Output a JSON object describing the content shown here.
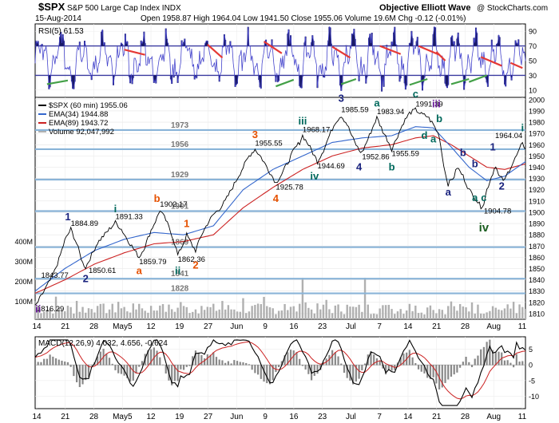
{
  "header": {
    "symbol": "$SPX",
    "description": "S&P 500 Large Cap Index INDX",
    "date": "15-Aug-2014",
    "brand": "Objective Elliott Wave",
    "copyright": "@ StockCharts.com",
    "quote": "Open 1958.87  High 1964.04  Low 1941.50  Close 1955.06  Volume 19.6M  Chg -0.12 (-0.01%)"
  },
  "colors": {
    "rsi_fill": "#1a1a66",
    "rsi_line": "#4444cc",
    "ema34": "#3366cc",
    "ema89": "#cc2222",
    "price": "#000000",
    "volume": "#b0b0b0",
    "level_line": "#8ab4d8",
    "wave_blue": "#1a237e",
    "wave_teal": "#00695c",
    "wave_orange": "#e65100",
    "wave_green": "#1b5e20",
    "wave_purple": "#6a1b9a",
    "divergence_red": "#e53935",
    "divergence_green": "#43a047",
    "macd_line": "#000000",
    "macd_signal": "#cc2222",
    "histogram": "#888888"
  },
  "chart_data": [
    {
      "type": "line",
      "panel": "rsi",
      "title": "RSI(5) 61.53",
      "ylim": [
        0,
        100
      ],
      "y_ticks": [
        10,
        30,
        50,
        70,
        90
      ],
      "levels": [
        30,
        70
      ]
    },
    {
      "type": "line",
      "panel": "price",
      "xlabel": "",
      "ylabel": "",
      "ylim": [
        1805,
        2002
      ],
      "y_ticks": [
        1810,
        1820,
        1830,
        1840,
        1850,
        1860,
        1870,
        1880,
        1890,
        1900,
        1910,
        1920,
        1930,
        1940,
        1950,
        1960,
        1970,
        1980,
        1990,
        2000
      ],
      "volume_ticks": [
        "100M",
        "200M",
        "300M",
        "400M"
      ],
      "legend": [
        {
          "name": "$SPX (60 min) 1955.06"
        },
        {
          "name": "EMA(34) 1944.88"
        },
        {
          "name": "EMA(89) 1943.72"
        },
        {
          "name": "Volume 92,047,992"
        }
      ],
      "x_ticks": [
        "14",
        "21",
        "28",
        "May5",
        "12",
        "19",
        "27",
        "Jun",
        "9",
        "16",
        "23",
        "Jul",
        "7",
        "14",
        "21",
        "28",
        "Aug",
        "11"
      ],
      "price_path": [
        [
          0,
          1816
        ],
        [
          3,
          1830
        ],
        [
          6,
          1844
        ],
        [
          8,
          1858
        ],
        [
          10,
          1875
        ],
        [
          12,
          1885
        ],
        [
          14,
          1872
        ],
        [
          16,
          1855
        ],
        [
          17,
          1851
        ],
        [
          19,
          1862
        ],
        [
          21,
          1873
        ],
        [
          24,
          1882
        ],
        [
          27,
          1891
        ],
        [
          29,
          1885
        ],
        [
          31,
          1876
        ],
        [
          33,
          1868
        ],
        [
          35,
          1860
        ],
        [
          37,
          1870
        ],
        [
          39,
          1884
        ],
        [
          41,
          1895
        ],
        [
          42,
          1902
        ],
        [
          44,
          1893
        ],
        [
          46,
          1880
        ],
        [
          47,
          1872
        ],
        [
          48,
          1862
        ],
        [
          50,
          1873
        ],
        [
          51,
          1880
        ],
        [
          53,
          1870
        ],
        [
          54,
          1866
        ],
        [
          56,
          1880
        ],
        [
          58,
          1890
        ],
        [
          60,
          1898
        ],
        [
          62,
          1903
        ],
        [
          64,
          1910
        ],
        [
          66,
          1920
        ],
        [
          68,
          1930
        ],
        [
          70,
          1940
        ],
        [
          72,
          1950
        ],
        [
          74,
          1956
        ],
        [
          76,
          1949
        ],
        [
          78,
          1940
        ],
        [
          80,
          1931
        ],
        [
          81,
          1926
        ],
        [
          83,
          1934
        ],
        [
          85,
          1944
        ],
        [
          87,
          1955
        ],
        [
          89,
          1962
        ],
        [
          90,
          1968
        ],
        [
          92,
          1960
        ],
        [
          94,
          1950
        ],
        [
          95,
          1945
        ],
        [
          97,
          1955
        ],
        [
          99,
          1968
        ],
        [
          101,
          1980
        ],
        [
          103,
          1986
        ],
        [
          105,
          1978
        ],
        [
          107,
          1965
        ],
        [
          109,
          1955
        ],
        [
          110,
          1953
        ],
        [
          112,
          1965
        ],
        [
          114,
          1978
        ],
        [
          115,
          1984
        ],
        [
          117,
          1972
        ],
        [
          119,
          1962
        ],
        [
          120,
          1956
        ],
        [
          122,
          1968
        ],
        [
          124,
          1980
        ],
        [
          126,
          1988
        ],
        [
          128,
          1991
        ],
        [
          130,
          1987
        ],
        [
          132,
          1985
        ],
        [
          134,
          1978
        ],
        [
          136,
          1968
        ],
        [
          137,
          1950
        ],
        [
          138,
          1935
        ],
        [
          139,
          1925
        ],
        [
          141,
          1932
        ],
        [
          142,
          1940
        ],
        [
          144,
          1932
        ],
        [
          146,
          1920
        ],
        [
          148,
          1913
        ],
        [
          150,
          1905
        ],
        [
          151,
          1908
        ],
        [
          152,
          1920
        ],
        [
          154,
          1935
        ],
        [
          155,
          1942
        ],
        [
          156,
          1932
        ],
        [
          158,
          1928
        ],
        [
          159,
          1935
        ],
        [
          161,
          1945
        ],
        [
          163,
          1955
        ],
        [
          164,
          1963
        ],
        [
          165,
          1955
        ]
      ],
      "ema34_path": [
        [
          0,
          1830
        ],
        [
          10,
          1850
        ],
        [
          20,
          1866
        ],
        [
          30,
          1876
        ],
        [
          40,
          1882
        ],
        [
          50,
          1880
        ],
        [
          60,
          1888
        ],
        [
          70,
          1920
        ],
        [
          80,
          1938
        ],
        [
          90,
          1950
        ],
        [
          100,
          1962
        ],
        [
          110,
          1966
        ],
        [
          120,
          1968
        ],
        [
          128,
          1976
        ],
        [
          134,
          1975
        ],
        [
          140,
          1958
        ],
        [
          146,
          1940
        ],
        [
          152,
          1928
        ],
        [
          158,
          1932
        ],
        [
          165,
          1945
        ]
      ],
      "ema89_path": [
        [
          0,
          1828
        ],
        [
          10,
          1840
        ],
        [
          20,
          1854
        ],
        [
          30,
          1864
        ],
        [
          40,
          1872
        ],
        [
          50,
          1874
        ],
        [
          60,
          1880
        ],
        [
          70,
          1904
        ],
        [
          80,
          1922
        ],
        [
          90,
          1938
        ],
        [
          100,
          1950
        ],
        [
          110,
          1957
        ],
        [
          120,
          1960
        ],
        [
          128,
          1966
        ],
        [
          134,
          1968
        ],
        [
          140,
          1960
        ],
        [
          146,
          1950
        ],
        [
          152,
          1940
        ],
        [
          158,
          1938
        ],
        [
          165,
          1943
        ]
      ],
      "levels": [
        {
          "value": 1973,
          "label": "1973"
        },
        {
          "value": 1956,
          "label": "1956"
        },
        {
          "value": 1929,
          "label": "1929"
        },
        {
          "value": 1901,
          "label": "1901"
        },
        {
          "value": 1869,
          "label": "1869"
        },
        {
          "value": 1841,
          "label": "1841"
        },
        {
          "value": 1828,
          "label": "1828"
        }
      ],
      "value_labels": [
        {
          "text": "1816.29",
          "x": 0,
          "y": 1812
        },
        {
          "text": "1843.77",
          "x": 2,
          "y": 1842
        },
        {
          "text": "1884.89",
          "x": 12,
          "y": 1888
        },
        {
          "text": "1850.61",
          "x": 18,
          "y": 1846
        },
        {
          "text": "1891.33",
          "x": 27,
          "y": 1894
        },
        {
          "text": "1859.79",
          "x": 35,
          "y": 1854
        },
        {
          "text": "1902.17",
          "x": 42,
          "y": 1905
        },
        {
          "text": "1862.36",
          "x": 48,
          "y": 1856
        },
        {
          "text": "1955.55",
          "x": 74,
          "y": 1959
        },
        {
          "text": "1925.78",
          "x": 81,
          "y": 1920
        },
        {
          "text": "1968.17",
          "x": 90,
          "y": 1971
        },
        {
          "text": "1944.69",
          "x": 95,
          "y": 1939
        },
        {
          "text": "1985.59",
          "x": 103,
          "y": 1989
        },
        {
          "text": "1952.86",
          "x": 110,
          "y": 1947
        },
        {
          "text": "1983.94",
          "x": 115,
          "y": 1987
        },
        {
          "text": "1955.59",
          "x": 120,
          "y": 1950
        },
        {
          "text": "1991.39",
          "x": 128,
          "y": 1994
        },
        {
          "text": "1904.78",
          "x": 151,
          "y": 1899
        },
        {
          "text": "1964.04",
          "x": 164,
          "y": 1966
        }
      ],
      "wave_labels": [
        {
          "text": "ii",
          "x": 1,
          "y": 1811,
          "color": "purple"
        },
        {
          "text": "1",
          "x": 11,
          "y": 1893,
          "color": "blue"
        },
        {
          "text": "2",
          "x": 17,
          "y": 1838,
          "color": "blue"
        },
        {
          "text": "i",
          "x": 27,
          "y": 1900,
          "color": "teal"
        },
        {
          "text": "a",
          "x": 35,
          "y": 1845,
          "color": "orange"
        },
        {
          "text": "b",
          "x": 41,
          "y": 1909,
          "color": "orange"
        },
        {
          "text": "1",
          "x": 51,
          "y": 1887,
          "color": "orange"
        },
        {
          "text": "ii",
          "x": 48,
          "y": 1845,
          "color": "teal"
        },
        {
          "text": "2",
          "x": 54,
          "y": 1850,
          "color": "orange"
        },
        {
          "text": "3",
          "x": 74,
          "y": 1966,
          "color": "orange"
        },
        {
          "text": "4",
          "x": 81,
          "y": 1909,
          "color": "orange"
        },
        {
          "text": "iii",
          "x": 90,
          "y": 1978,
          "color": "teal"
        },
        {
          "text": "iv",
          "x": 94,
          "y": 1929,
          "color": "teal"
        },
        {
          "text": "3",
          "x": 103,
          "y": 1998,
          "color": "blue"
        },
        {
          "text": "4",
          "x": 109,
          "y": 1937,
          "color": "blue"
        },
        {
          "text": "a",
          "x": 115,
          "y": 1994,
          "color": "teal"
        },
        {
          "text": "b",
          "x": 120,
          "y": 1937,
          "color": "teal"
        },
        {
          "text": "c",
          "x": 128,
          "y": 2002,
          "color": "teal"
        },
        {
          "text": "iii",
          "x": 135,
          "y": 1993,
          "color": "purple"
        },
        {
          "text": "b",
          "x": 136,
          "y": 1980,
          "color": "teal"
        },
        {
          "text": "a",
          "x": 134,
          "y": 1962,
          "color": "teal"
        },
        {
          "text": "d",
          "x": 131,
          "y": 1965,
          "color": "teal"
        },
        {
          "text": "a",
          "x": 139,
          "y": 1915,
          "color": "blue"
        },
        {
          "text": "b",
          "x": 144,
          "y": 1950,
          "color": "blue"
        },
        {
          "text": "b",
          "x": 148,
          "y": 1940,
          "color": "blue"
        },
        {
          "text": "a",
          "x": 148,
          "y": 1910,
          "color": "teal"
        },
        {
          "text": "c",
          "x": 151,
          "y": 1910,
          "color": "teal"
        },
        {
          "text": "1",
          "x": 154,
          "y": 1955,
          "color": "blue"
        },
        {
          "text": "2",
          "x": 157,
          "y": 1920,
          "color": "blue"
        },
        {
          "text": "i",
          "x": 164,
          "y": 1972,
          "color": "teal"
        },
        {
          "text": "iv",
          "x": 151,
          "y": 1883,
          "color": "green"
        }
      ]
    },
    {
      "type": "line",
      "panel": "macd",
      "title": "MACD(12,26,9) 4.032, 4.656, -0.624",
      "ylim": [
        -14,
        9
      ],
      "y_ticks": [
        5,
        0,
        -5,
        -10
      ]
    }
  ]
}
